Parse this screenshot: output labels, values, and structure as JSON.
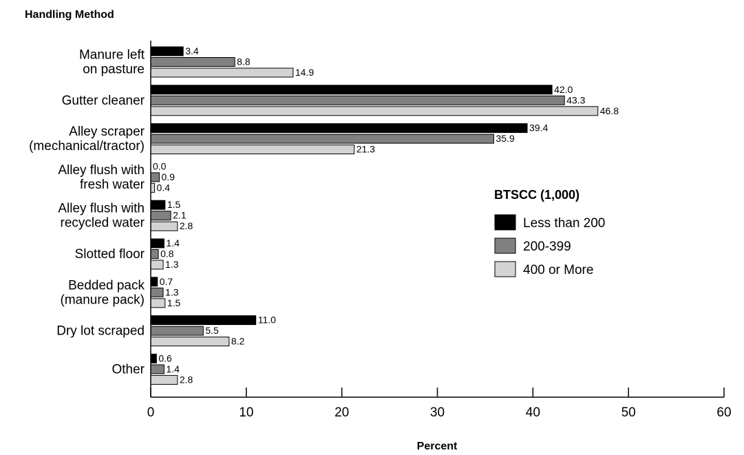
{
  "chart_data": {
    "type": "bar",
    "orientation": "horizontal",
    "title": "Handling Method",
    "xlabel": "Percent",
    "ylabel": "Handling Method",
    "xlim": [
      0,
      60
    ],
    "x_ticks": [
      0,
      10,
      20,
      30,
      40,
      50,
      60
    ],
    "grid": false,
    "legend_title": "BTSCC (1,000)",
    "legend_position": "right",
    "categories": [
      [
        "Manure left",
        "on pasture"
      ],
      [
        "Gutter cleaner"
      ],
      [
        "Alley scraper",
        "(mechanical/tractor)"
      ],
      [
        "Alley flush with",
        "fresh water"
      ],
      [
        "Alley flush with",
        "recycled water"
      ],
      [
        "Slotted floor"
      ],
      [
        "Bedded pack",
        "(manure pack)"
      ],
      [
        "Dry lot scraped"
      ],
      [
        "Other"
      ]
    ],
    "series": [
      {
        "name": "Less than 200",
        "color": "#000000",
        "values": [
          3.4,
          42.0,
          39.4,
          0.0,
          1.5,
          1.4,
          0.7,
          11.0,
          0.6
        ]
      },
      {
        "name": "200-399",
        "color": "#808080",
        "values": [
          8.8,
          43.3,
          35.9,
          0.9,
          2.1,
          0.8,
          1.3,
          5.5,
          1.4
        ]
      },
      {
        "name": "400 or More",
        "color": "#d3d3d3",
        "values": [
          14.9,
          46.8,
          21.3,
          0.4,
          2.8,
          1.3,
          1.5,
          8.2,
          2.8
        ]
      }
    ]
  }
}
